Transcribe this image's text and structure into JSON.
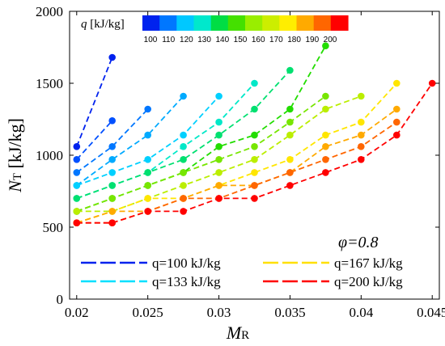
{
  "chart_data": {
    "type": "line",
    "xlabel": {
      "main": "M",
      "sub": "R"
    },
    "ylabel": {
      "main": "N",
      "sub": "T",
      "unit": " [kJ/kg]"
    },
    "xlim": [
      0.0195,
      0.0455
    ],
    "ylim": [
      0,
      2000
    ],
    "x_ticks": [
      "0.02",
      "0.025",
      "0.03",
      "0.035",
      "0.04",
      "0.045"
    ],
    "y_ticks": [
      "0",
      "500",
      "1000",
      "1500",
      "2000"
    ],
    "grid": false,
    "annotation": "φ=0.8",
    "colorbar": {
      "title_var": "q",
      "title_unit": " [kJ/kg]",
      "ticks": [
        "100",
        "110",
        "120",
        "130",
        "140",
        "150",
        "160",
        "170",
        "180",
        "190",
        "200"
      ],
      "colors": [
        "#0022ee",
        "#0077ff",
        "#00c8ff",
        "#00e8cc",
        "#00dd44",
        "#44e000",
        "#99ee00",
        "#ccee00",
        "#ffee00",
        "#ffaa00",
        "#ff6600",
        "#ff0000"
      ]
    },
    "legend": [
      {
        "label": "q=100 kJ/kg",
        "color": "#0022ee"
      },
      {
        "label": "q=133 kJ/kg",
        "color": "#00e0ff"
      },
      {
        "label": "q=167 kJ/kg",
        "color": "#ffe000"
      },
      {
        "label": "q=200 kJ/kg",
        "color": "#ff0000"
      }
    ],
    "lines": [
      {
        "color": "#0022ee",
        "points": [
          [
            0.02,
            1060
          ],
          [
            0.0225,
            1680
          ]
        ]
      },
      {
        "color": "#0050ff",
        "points": [
          [
            0.02,
            970
          ],
          [
            0.0225,
            1240
          ]
        ]
      },
      {
        "color": "#0077ff",
        "points": [
          [
            0.02,
            880
          ],
          [
            0.0225,
            1060
          ],
          [
            0.025,
            1320
          ]
        ]
      },
      {
        "color": "#00aaff",
        "points": [
          [
            0.02,
            790
          ],
          [
            0.0225,
            970
          ],
          [
            0.025,
            1140
          ],
          [
            0.0275,
            1410
          ]
        ]
      },
      {
        "color": "#00d0ff",
        "points": [
          [
            0.02,
            790
          ],
          [
            0.0225,
            880
          ],
          [
            0.025,
            970
          ],
          [
            0.0275,
            1140
          ],
          [
            0.03,
            1410
          ]
        ]
      },
      {
        "color": "#00e8c8",
        "points": [
          [
            0.02,
            700
          ],
          [
            0.0225,
            790
          ],
          [
            0.025,
            880
          ],
          [
            0.0275,
            1060
          ],
          [
            0.03,
            1230
          ],
          [
            0.0325,
            1500
          ]
        ]
      },
      {
        "color": "#00e070",
        "points": [
          [
            0.02,
            700
          ],
          [
            0.0225,
            790
          ],
          [
            0.025,
            880
          ],
          [
            0.0275,
            970
          ],
          [
            0.03,
            1140
          ],
          [
            0.0325,
            1320
          ],
          [
            0.035,
            1590
          ]
        ]
      },
      {
        "color": "#22dd00",
        "points": [
          [
            0.02,
            610
          ],
          [
            0.0225,
            700
          ],
          [
            0.025,
            790
          ],
          [
            0.0275,
            880
          ],
          [
            0.03,
            1060
          ],
          [
            0.0325,
            1140
          ],
          [
            0.035,
            1320
          ],
          [
            0.0375,
            1760
          ]
        ]
      },
      {
        "color": "#77e600",
        "points": [
          [
            0.02,
            610
          ],
          [
            0.0225,
            700
          ],
          [
            0.025,
            790
          ],
          [
            0.0275,
            880
          ],
          [
            0.03,
            970
          ],
          [
            0.0325,
            1060
          ],
          [
            0.035,
            1230
          ],
          [
            0.0375,
            1410
          ]
        ]
      },
      {
        "color": "#bbee00",
        "points": [
          [
            0.02,
            610
          ],
          [
            0.0225,
            610
          ],
          [
            0.025,
            700
          ],
          [
            0.0275,
            790
          ],
          [
            0.03,
            880
          ],
          [
            0.0325,
            970
          ],
          [
            0.035,
            1140
          ],
          [
            0.0375,
            1320
          ],
          [
            0.04,
            1410
          ]
        ]
      },
      {
        "color": "#ffe600",
        "points": [
          [
            0.02,
            530
          ],
          [
            0.0225,
            610
          ],
          [
            0.025,
            700
          ],
          [
            0.0275,
            700
          ],
          [
            0.03,
            790
          ],
          [
            0.0325,
            880
          ],
          [
            0.035,
            970
          ],
          [
            0.0375,
            1140
          ],
          [
            0.04,
            1230
          ],
          [
            0.0425,
            1500
          ]
        ]
      },
      {
        "color": "#ffaa00",
        "points": [
          [
            0.02,
            530
          ],
          [
            0.0225,
            610
          ],
          [
            0.025,
            610
          ],
          [
            0.0275,
            700
          ],
          [
            0.03,
            790
          ],
          [
            0.0325,
            790
          ],
          [
            0.035,
            880
          ],
          [
            0.0375,
            1060
          ],
          [
            0.04,
            1140
          ],
          [
            0.0425,
            1320
          ]
        ]
      },
      {
        "color": "#ff6600",
        "points": [
          [
            0.02,
            530
          ],
          [
            0.0225,
            530
          ],
          [
            0.025,
            610
          ],
          [
            0.0275,
            700
          ],
          [
            0.03,
            700
          ],
          [
            0.0325,
            790
          ],
          [
            0.035,
            880
          ],
          [
            0.0375,
            970
          ],
          [
            0.04,
            1060
          ],
          [
            0.0425,
            1230
          ]
        ]
      },
      {
        "color": "#ff0000",
        "points": [
          [
            0.02,
            530
          ],
          [
            0.0225,
            530
          ],
          [
            0.025,
            610
          ],
          [
            0.0275,
            610
          ],
          [
            0.03,
            700
          ],
          [
            0.0325,
            700
          ],
          [
            0.035,
            790
          ],
          [
            0.0375,
            880
          ],
          [
            0.04,
            970
          ],
          [
            0.0425,
            1140
          ],
          [
            0.045,
            1500
          ]
        ]
      }
    ]
  }
}
